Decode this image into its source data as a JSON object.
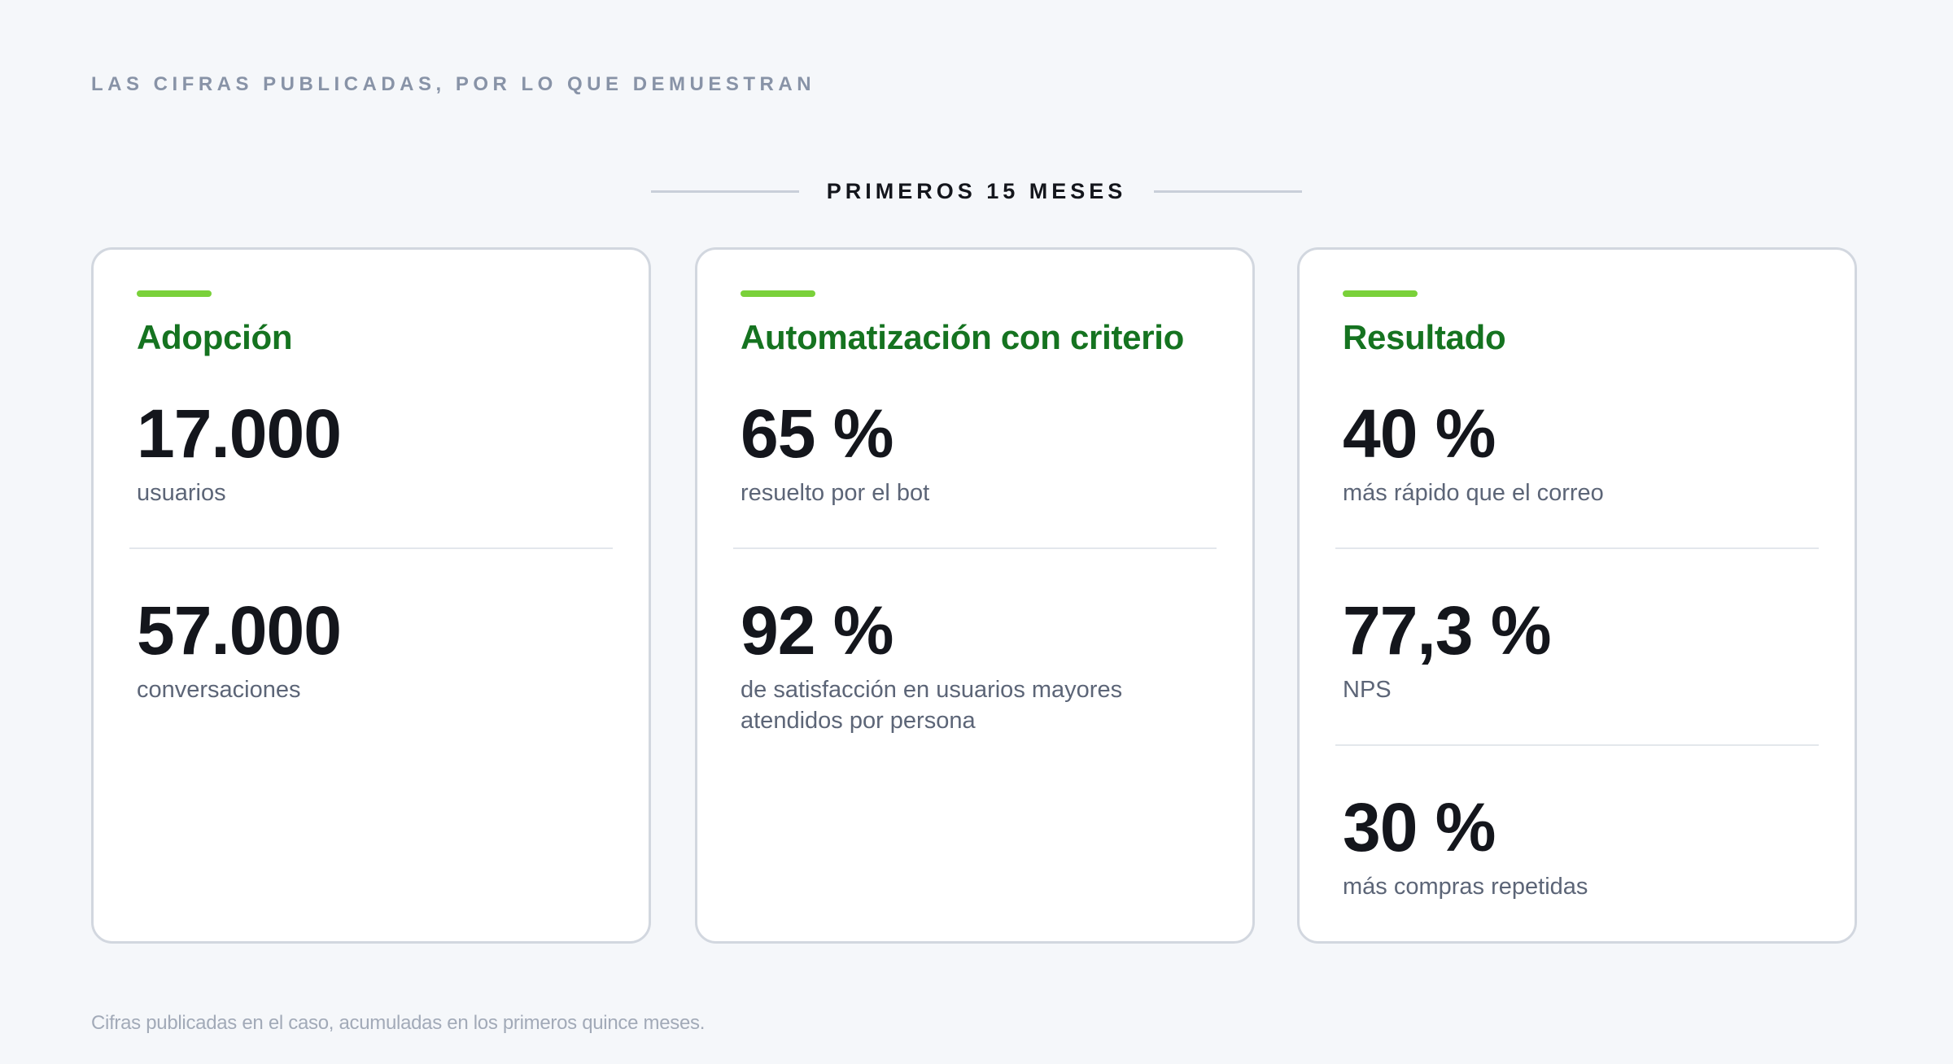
{
  "header": {
    "eyebrow": "LAS CIFRAS PUBLICADAS, POR LO QUE DEMUESTRAN",
    "period_label": "PRIMEROS 15 MESES"
  },
  "cards": [
    {
      "title": "Adopción",
      "metrics": [
        {
          "value": "17.000",
          "label": "usuarios"
        },
        {
          "value": "57.000",
          "label": "conversaciones"
        }
      ]
    },
    {
      "title": "Automatización con criterio",
      "metrics": [
        {
          "value": "65 %",
          "label": "resuelto por el bot"
        },
        {
          "value": "92 %",
          "label": "de satisfacción en usuarios mayores atendidos por persona"
        }
      ]
    },
    {
      "title": "Resultado",
      "metrics": [
        {
          "value": "40 %",
          "label": "más rápido que el correo"
        },
        {
          "value": "77,3 %",
          "label": "NPS"
        },
        {
          "value": "30 %",
          "label": "más compras repetidas"
        }
      ]
    }
  ],
  "footnote": "Cifras publicadas en el caso, acumuladas en los primeros quince meses.",
  "colors": {
    "accent_bar": "#7ad13a",
    "title_green": "#157320",
    "background": "#f5f7fa",
    "card_border": "#d2d7df"
  }
}
